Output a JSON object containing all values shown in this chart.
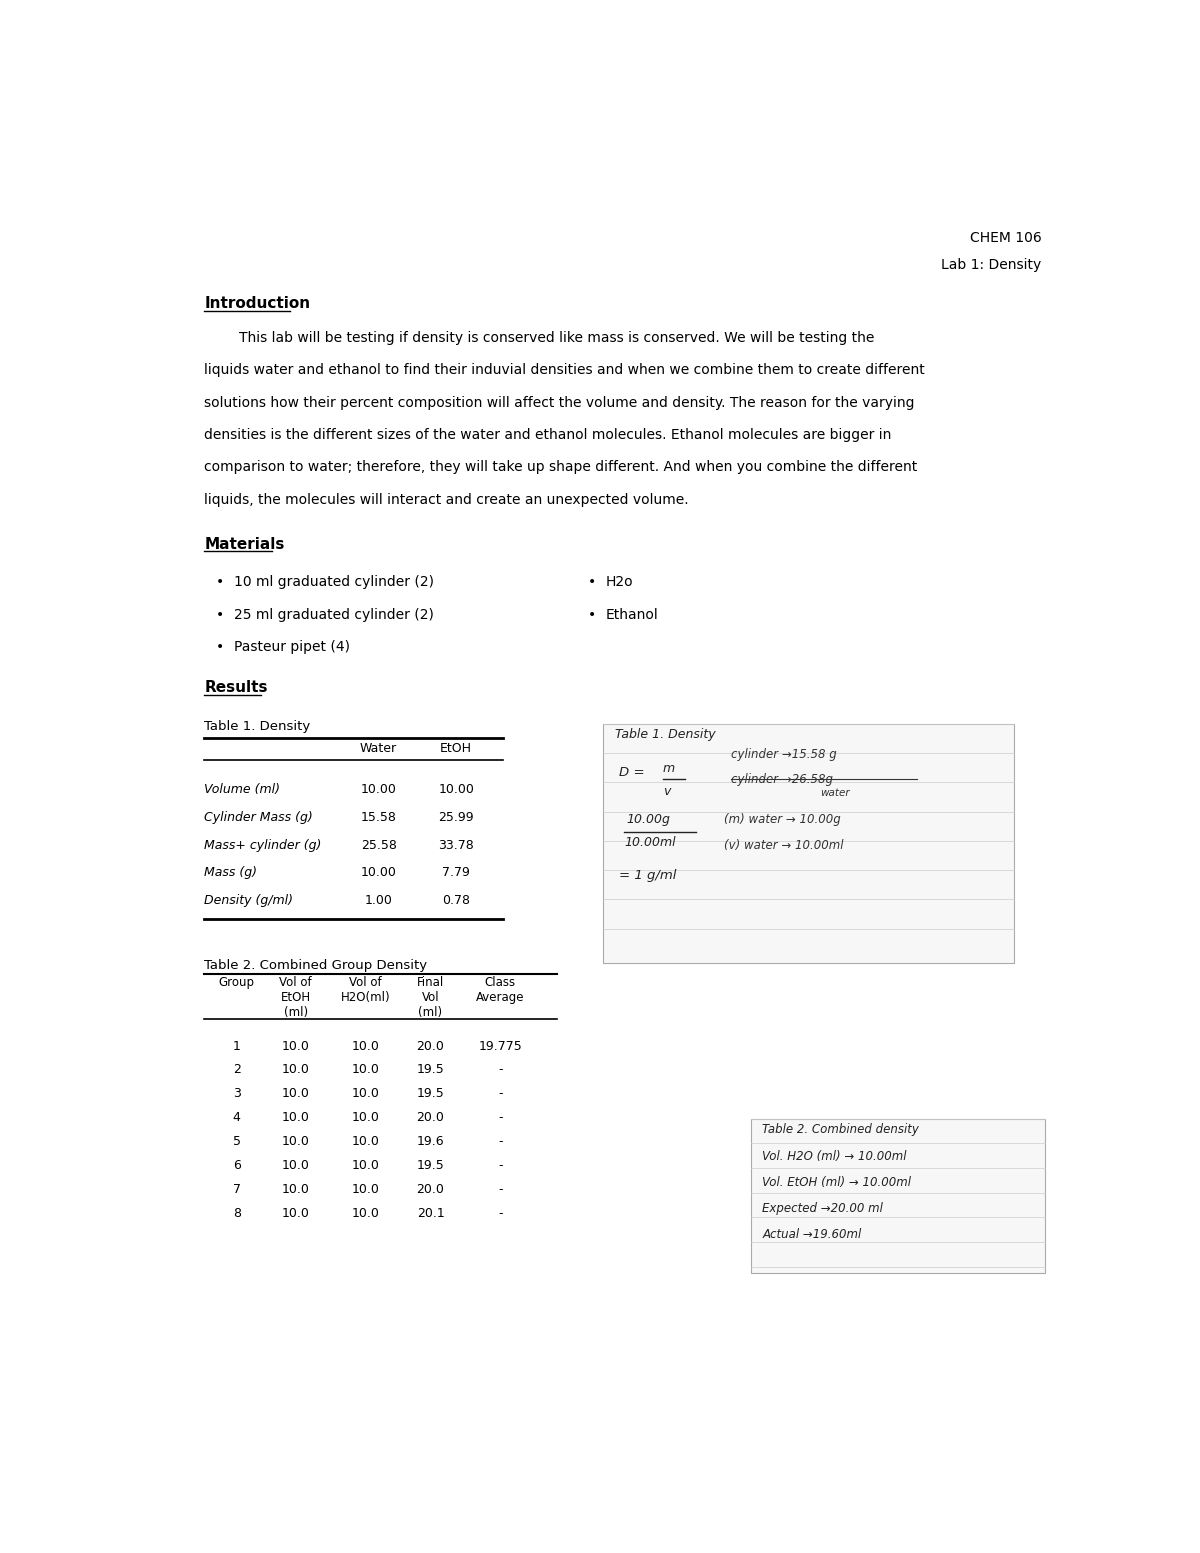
{
  "header_right_line1": "CHEM 106",
  "header_right_line2": "Lab 1: Density",
  "intro_heading": "Introduction",
  "intro_text": [
    "        This lab will be testing if density is conserved like mass is conserved. We will be testing the",
    "liquids water and ethanol to find their induvial densities and when we combine them to create different",
    "solutions how their percent composition will affect the volume and density. The reason for the varying",
    "densities is the different sizes of the water and ethanol molecules. Ethanol molecules are bigger in",
    "comparison to water; therefore, they will take up shape different. And when you combine the different",
    "liquids, the molecules will interact and create an unexpected volume."
  ],
  "materials_heading": "Materials",
  "materials_left": [
    "10 ml graduated cylinder (2)",
    "25 ml graduated cylinder (2)",
    "Pasteur pipet (4)"
  ],
  "materials_right": [
    "H2o",
    "Ethanol"
  ],
  "results_heading": "Results",
  "table1_title": "Table 1. Density",
  "table1_rows": [
    [
      "Volume (ml)",
      "10.00",
      "10.00"
    ],
    [
      "Cylinder Mass (g)",
      "15.58",
      "25.99"
    ],
    [
      "Mass+ cylinder (g)",
      "25.58",
      "33.78"
    ],
    [
      "Mass (g)",
      "10.00",
      "7.79"
    ],
    [
      "Density (g/ml)",
      "1.00",
      "0.78"
    ]
  ],
  "table2_title": "Table 2. Combined Group Density",
  "table2_col_labels": [
    "Group",
    "Vol of\nEtOH\n(ml)",
    "Vol of\nH2O(ml)",
    "Final\nVol\n(ml)",
    "Class\nAverage"
  ],
  "table2_rows": [
    [
      "1",
      "10.0",
      "10.0",
      "20.0",
      "19.775"
    ],
    [
      "2",
      "10.0",
      "10.0",
      "19.5",
      "-"
    ],
    [
      "3",
      "10.0",
      "10.0",
      "19.5",
      "-"
    ],
    [
      "4",
      "10.0",
      "10.0",
      "20.0",
      "-"
    ],
    [
      "5",
      "10.0",
      "10.0",
      "19.6",
      "-"
    ],
    [
      "6",
      "10.0",
      "10.0",
      "19.5",
      "-"
    ],
    [
      "7",
      "10.0",
      "10.0",
      "20.0",
      "-"
    ],
    [
      "8",
      "10.0",
      "10.0",
      "20.1",
      "-"
    ]
  ],
  "hw1_title": "Table 1. Density",
  "hw2_lines": [
    "Table 2. Combined density",
    "Vol. H2O (ml) → 10.00ml",
    "Vol. EtOH (ml) → 10.00ml",
    "Expected →20.00 ml",
    "Actual →19.60ml"
  ],
  "bg_color": "#ffffff",
  "text_color": "#000000",
  "font_size_body": 10,
  "font_size_heading": 11
}
